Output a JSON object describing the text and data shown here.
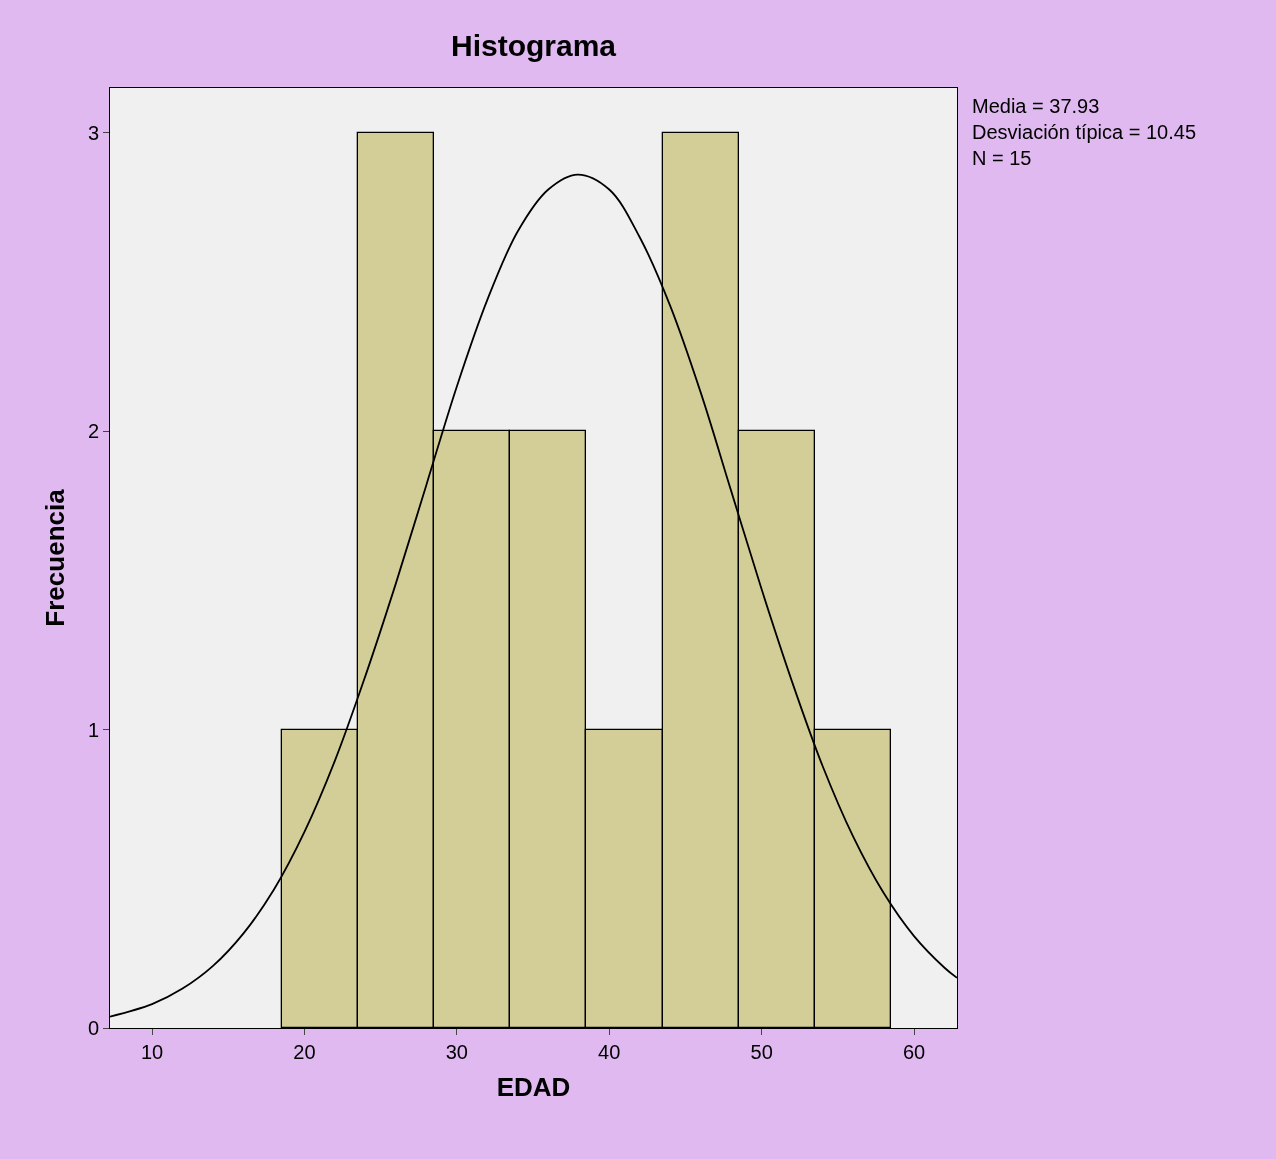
{
  "chart_data": {
    "type": "histogram",
    "title": "Histograma",
    "xlabel": "EDAD",
    "ylabel": "Frecuencia",
    "bins": [
      18.5,
      23.5,
      28.5,
      33.5,
      38.5,
      43.5,
      48.5,
      53.5,
      58.5
    ],
    "values": [
      1,
      3,
      2,
      2,
      1,
      3,
      2,
      1
    ],
    "color": "#d3ce97",
    "series": [
      {
        "type": "line",
        "color": "#000000",
        "x": [
          7.24,
          10,
          12,
          14,
          16,
          18,
          20,
          22,
          24,
          26,
          28,
          30,
          32,
          34,
          36,
          37.93,
          40,
          42,
          44,
          46,
          48,
          50,
          52,
          54,
          56,
          58,
          60,
          62,
          62.82
        ],
        "values": [
          0.038,
          0.08,
          0.132,
          0.208,
          0.317,
          0.464,
          0.657,
          0.896,
          1.18,
          1.49,
          1.82,
          2.15,
          2.44,
          2.67,
          2.81,
          2.86,
          2.81,
          2.65,
          2.42,
          2.13,
          1.8,
          1.47,
          1.16,
          0.878,
          0.642,
          0.453,
          0.308,
          0.202,
          0.168
        ]
      }
    ],
    "xlim": [
      7.24,
      62.82
    ],
    "xticks": [
      10,
      20,
      30,
      40,
      50,
      60
    ],
    "ylim": [
      0,
      3.15
    ],
    "yticks": [
      0,
      1,
      2,
      3
    ],
    "annotations": [
      "Media = 37.93",
      "Desviación típica = 10.45",
      "N = 15"
    ],
    "grid": false,
    "marker": "none"
  }
}
